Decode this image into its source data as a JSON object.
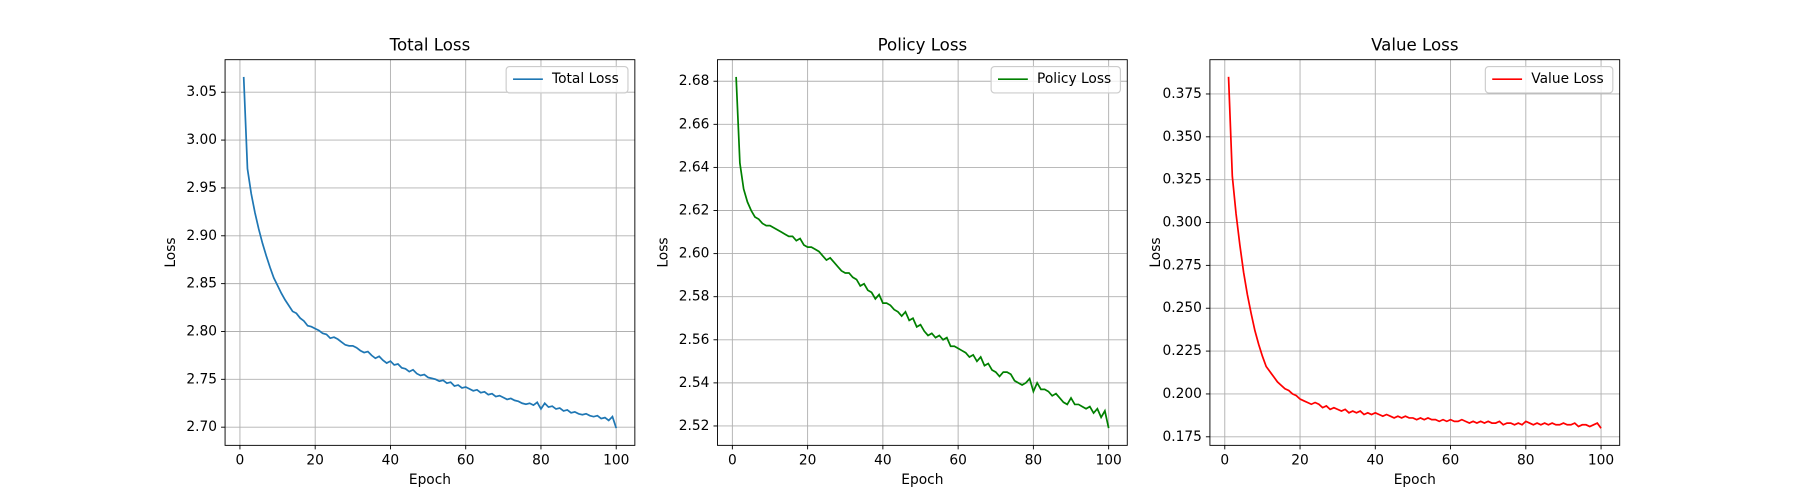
{
  "chart_data": [
    {
      "type": "line",
      "title": "Total Loss",
      "x_label": "Epoch",
      "y_label": "Loss",
      "x": [
        1,
        2,
        3,
        4,
        5,
        6,
        7,
        8,
        9,
        10,
        11,
        12,
        13,
        14,
        15,
        16,
        17,
        18,
        19,
        20,
        21,
        22,
        23,
        24,
        25,
        26,
        27,
        28,
        29,
        30,
        31,
        32,
        33,
        34,
        35,
        36,
        37,
        38,
        39,
        40,
        41,
        42,
        43,
        44,
        45,
        46,
        47,
        48,
        49,
        50,
        51,
        52,
        53,
        54,
        55,
        56,
        57,
        58,
        59,
        60,
        61,
        62,
        63,
        64,
        65,
        66,
        67,
        68,
        69,
        70,
        71,
        72,
        73,
        74,
        75,
        76,
        77,
        78,
        79,
        80,
        81,
        82,
        83,
        84,
        85,
        86,
        87,
        88,
        89,
        90,
        91,
        92,
        93,
        94,
        95,
        96,
        97,
        98,
        99,
        100
      ],
      "series": [
        {
          "name": "Total Loss",
          "color": "#1f77b4",
          "values": [
            3.066,
            2.97,
            2.944,
            2.924,
            2.907,
            2.892,
            2.879,
            2.867,
            2.856,
            2.848,
            2.84,
            2.833,
            2.827,
            2.821,
            2.819,
            2.814,
            2.811,
            2.806,
            2.805,
            2.803,
            2.801,
            2.798,
            2.797,
            2.793,
            2.794,
            2.792,
            2.789,
            2.786,
            2.785,
            2.785,
            2.783,
            2.78,
            2.778,
            2.779,
            2.775,
            2.772,
            2.774,
            2.77,
            2.767,
            2.769,
            2.765,
            2.766,
            2.762,
            2.761,
            2.758,
            2.76,
            2.756,
            2.754,
            2.755,
            2.752,
            2.751,
            2.75,
            2.748,
            2.749,
            2.746,
            2.747,
            2.743,
            2.744,
            2.741,
            2.742,
            2.74,
            2.738,
            2.739,
            2.736,
            2.737,
            2.734,
            2.735,
            2.732,
            2.733,
            2.731,
            2.729,
            2.73,
            2.728,
            2.727,
            2.725,
            2.724,
            2.725,
            2.723,
            2.726,
            2.719,
            2.725,
            2.721,
            2.722,
            2.719,
            2.72,
            2.717,
            2.718,
            2.715,
            2.716,
            2.714,
            2.713,
            2.714,
            2.712,
            2.711,
            2.712,
            2.709,
            2.71,
            2.707,
            2.711,
            2.699
          ]
        }
      ],
      "xlim": [
        -3.95,
        104.95
      ],
      "ylim": [
        2.681,
        3.084
      ],
      "xticks": [
        0,
        20,
        40,
        60,
        80,
        100
      ],
      "yticks": [
        {
          "value": 2.7,
          "label": "2.70"
        },
        2.75,
        {
          "value": 2.8,
          "label": "2.80"
        },
        2.85,
        {
          "value": 2.9,
          "label": "2.90"
        },
        2.95,
        {
          "value": 3.0,
          "label": "3.00"
        },
        3.05
      ],
      "grid": true,
      "legend": "upper right"
    },
    {
      "type": "line",
      "title": "Policy Loss",
      "x_label": "Epoch",
      "y_label": "Loss",
      "x": [
        1,
        2,
        3,
        4,
        5,
        6,
        7,
        8,
        9,
        10,
        11,
        12,
        13,
        14,
        15,
        16,
        17,
        18,
        19,
        20,
        21,
        22,
        23,
        24,
        25,
        26,
        27,
        28,
        29,
        30,
        31,
        32,
        33,
        34,
        35,
        36,
        37,
        38,
        39,
        40,
        41,
        42,
        43,
        44,
        45,
        46,
        47,
        48,
        49,
        50,
        51,
        52,
        53,
        54,
        55,
        56,
        57,
        58,
        59,
        60,
        61,
        62,
        63,
        64,
        65,
        66,
        67,
        68,
        69,
        70,
        71,
        72,
        73,
        74,
        75,
        76,
        77,
        78,
        79,
        80,
        81,
        82,
        83,
        84,
        85,
        86,
        87,
        88,
        89,
        90,
        91,
        92,
        93,
        94,
        95,
        96,
        97,
        98,
        99,
        100
      ],
      "series": [
        {
          "name": "Policy Loss",
          "color": "#008000",
          "values": [
            2.682,
            2.642,
            2.63,
            2.624,
            2.62,
            2.617,
            2.616,
            2.614,
            2.613,
            2.613,
            2.612,
            2.611,
            2.61,
            2.609,
            2.608,
            2.608,
            2.606,
            2.607,
            2.604,
            2.603,
            2.603,
            2.602,
            2.601,
            2.599,
            2.597,
            2.598,
            2.596,
            2.594,
            2.592,
            2.591,
            2.591,
            2.589,
            2.588,
            2.585,
            2.586,
            2.583,
            2.582,
            2.579,
            2.581,
            2.577,
            2.577,
            2.576,
            2.574,
            2.573,
            2.571,
            2.573,
            2.569,
            2.57,
            2.566,
            2.567,
            2.564,
            2.562,
            2.563,
            2.561,
            2.562,
            2.56,
            2.561,
            2.557,
            2.557,
            2.556,
            2.555,
            2.554,
            2.552,
            2.553,
            2.55,
            2.552,
            2.548,
            2.549,
            2.546,
            2.545,
            2.543,
            2.545,
            2.545,
            2.544,
            2.541,
            2.54,
            2.539,
            2.54,
            2.542,
            2.536,
            2.54,
            2.537,
            2.537,
            2.536,
            2.534,
            2.535,
            2.533,
            2.531,
            2.53,
            2.533,
            2.53,
            2.53,
            2.529,
            2.528,
            2.529,
            2.526,
            2.528,
            2.524,
            2.527,
            2.519
          ]
        }
      ],
      "xlim": [
        -3.95,
        104.95
      ],
      "ylim": [
        2.511,
        2.69
      ],
      "xticks": [
        0,
        20,
        40,
        60,
        80,
        100
      ],
      "yticks": [
        2.52,
        2.54,
        2.56,
        2.58,
        {
          "value": 2.6,
          "label": "2.60"
        },
        2.62,
        2.64,
        2.66,
        2.68
      ],
      "grid": true,
      "legend": "upper right"
    },
    {
      "type": "line",
      "title": "Value Loss",
      "x_label": "Epoch",
      "y_label": "Loss",
      "x": [
        1,
        2,
        3,
        4,
        5,
        6,
        7,
        8,
        9,
        10,
        11,
        12,
        13,
        14,
        15,
        16,
        17,
        18,
        19,
        20,
        21,
        22,
        23,
        24,
        25,
        26,
        27,
        28,
        29,
        30,
        31,
        32,
        33,
        34,
        35,
        36,
        37,
        38,
        39,
        40,
        41,
        42,
        43,
        44,
        45,
        46,
        47,
        48,
        49,
        50,
        51,
        52,
        53,
        54,
        55,
        56,
        57,
        58,
        59,
        60,
        61,
        62,
        63,
        64,
        65,
        66,
        67,
        68,
        69,
        70,
        71,
        72,
        73,
        74,
        75,
        76,
        77,
        78,
        79,
        80,
        81,
        82,
        83,
        84,
        85,
        86,
        87,
        88,
        89,
        90,
        91,
        92,
        93,
        94,
        95,
        96,
        97,
        98,
        99,
        100
      ],
      "series": [
        {
          "name": "Value Loss",
          "color": "#ff0000",
          "values": [
            0.385,
            0.327,
            0.305,
            0.287,
            0.271,
            0.258,
            0.247,
            0.237,
            0.229,
            0.222,
            0.216,
            0.213,
            0.21,
            0.207,
            0.205,
            0.203,
            0.202,
            0.2,
            0.199,
            0.197,
            0.196,
            0.195,
            0.194,
            0.195,
            0.194,
            0.192,
            0.193,
            0.191,
            0.192,
            0.191,
            0.19,
            0.191,
            0.189,
            0.19,
            0.189,
            0.19,
            0.188,
            0.189,
            0.188,
            0.189,
            0.188,
            0.187,
            0.188,
            0.187,
            0.186,
            0.187,
            0.186,
            0.187,
            0.186,
            0.186,
            0.185,
            0.186,
            0.185,
            0.186,
            0.185,
            0.185,
            0.184,
            0.185,
            0.184,
            0.185,
            0.184,
            0.184,
            0.185,
            0.184,
            0.183,
            0.184,
            0.183,
            0.184,
            0.183,
            0.184,
            0.183,
            0.183,
            0.184,
            0.182,
            0.183,
            0.183,
            0.182,
            0.183,
            0.182,
            0.184,
            0.183,
            0.182,
            0.183,
            0.182,
            0.183,
            0.182,
            0.183,
            0.182,
            0.182,
            0.183,
            0.182,
            0.182,
            0.183,
            0.181,
            0.182,
            0.182,
            0.181,
            0.182,
            0.183,
            0.18
          ]
        }
      ],
      "xlim": [
        -3.95,
        104.95
      ],
      "ylim": [
        0.17,
        0.395
      ],
      "xticks": [
        0,
        20,
        40,
        60,
        80,
        100
      ],
      "yticks": [
        0.175,
        {
          "value": 0.2,
          "label": "0.200"
        },
        0.225,
        {
          "value": 0.25,
          "label": "0.250"
        },
        0.275,
        {
          "value": 0.3,
          "label": "0.300"
        },
        0.325,
        {
          "value": 0.35,
          "label": "0.350"
        },
        0.375
      ],
      "grid": true,
      "legend": "upper right"
    }
  ]
}
